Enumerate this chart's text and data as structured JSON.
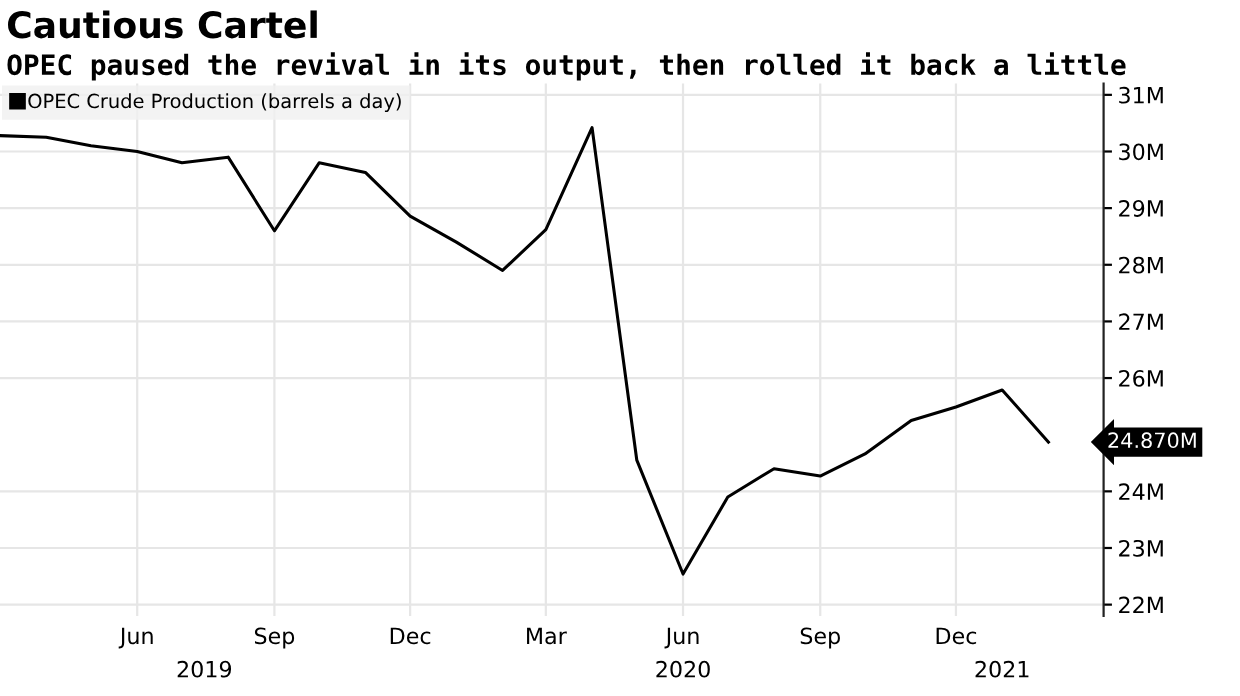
{
  "chart_data": {
    "type": "line",
    "title": "Cautious Cartel",
    "subtitle": "OPEC paused the revival in its output, then rolled it back a little",
    "x": [
      "2019-03",
      "2019-04",
      "2019-05",
      "2019-06",
      "2019-07",
      "2019-08",
      "2019-09",
      "2019-10",
      "2019-11",
      "2019-12",
      "2020-01",
      "2020-02",
      "2020-03",
      "2020-04",
      "2020-05",
      "2020-06",
      "2020-07",
      "2020-08",
      "2020-09",
      "2020-10",
      "2020-11",
      "2020-12",
      "2021-01",
      "2021-02"
    ],
    "series": [
      {
        "name": "OPEC Crude Production (barrels a day)",
        "color": "#000000",
        "values": [
          30.28,
          30.25,
          30.1,
          30.0,
          29.8,
          29.9,
          28.6,
          29.8,
          29.63,
          28.86,
          28.4,
          27.9,
          28.62,
          30.42,
          24.55,
          22.54,
          23.9,
          24.4,
          24.27,
          24.66,
          25.25,
          25.49,
          25.79,
          24.87
        ]
      }
    ],
    "ylim": [
      21.8,
      31.2
    ],
    "yticks": [
      {
        "value": 22,
        "label": "22M"
      },
      {
        "value": 23,
        "label": "23M"
      },
      {
        "value": 24,
        "label": "24M"
      },
      {
        "value": 26,
        "label": "26M"
      },
      {
        "value": 27,
        "label": "27M"
      },
      {
        "value": 28,
        "label": "28M"
      },
      {
        "value": 29,
        "label": "29M"
      },
      {
        "value": 30,
        "label": "30M"
      },
      {
        "value": 31,
        "label": "31M"
      }
    ],
    "xlim": [
      "2019-03",
      "2021-03-10"
    ],
    "xticks": [
      {
        "value": "2019-06",
        "label": "Jun"
      },
      {
        "value": "2019-09",
        "label": "Sep"
      },
      {
        "value": "2019-12",
        "label": "Dec"
      },
      {
        "value": "2020-03",
        "label": "Mar"
      },
      {
        "value": "2020-06",
        "label": "Jun"
      },
      {
        "value": "2020-09",
        "label": "Sep"
      },
      {
        "value": "2020-12",
        "label": "Dec"
      }
    ],
    "x2lim": [
      "2019-03",
      "2021-03-10"
    ],
    "x2ticks": [
      {
        "value": "2019-07-16",
        "label": "2019"
      },
      {
        "value": "2020-06",
        "label": "2020"
      },
      {
        "value": "2021-01",
        "label": "2021"
      }
    ],
    "annotations": [
      {
        "text": "24.870M",
        "x": "2021-02",
        "y": 24.87
      }
    ],
    "grid": true,
    "legend": "top left",
    "marker": "none",
    "line_style": "solid"
  }
}
